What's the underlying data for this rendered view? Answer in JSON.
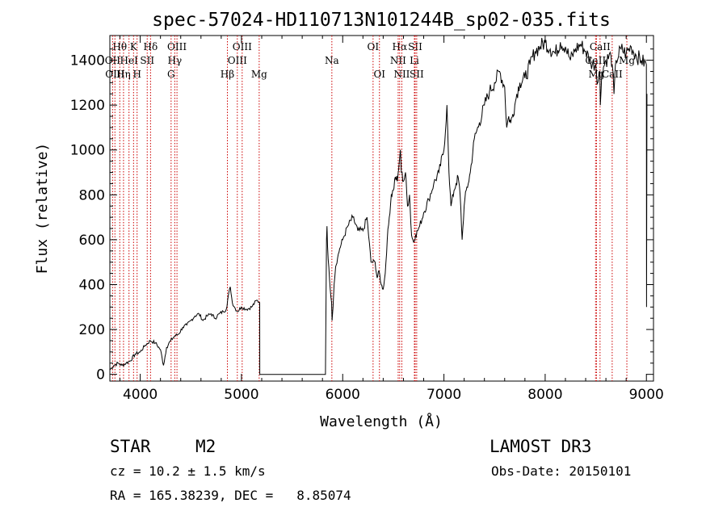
{
  "chart_data": {
    "type": "line",
    "title": "spec-57024-HD110713N101244B_sp02-035.fits",
    "xlabel": "Wavelength (Å)",
    "ylabel": "Flux (relative)",
    "xlim": [
      3700,
      9070
    ],
    "ylim": [
      -30,
      1510
    ],
    "xticks": [
      4000,
      5000,
      6000,
      7000,
      8000,
      9000
    ],
    "yticks": [
      0,
      200,
      400,
      600,
      800,
      1000,
      1200,
      1400
    ],
    "xtick_labels": [
      "4000",
      "5000",
      "6000",
      "7000",
      "8000",
      "9000"
    ],
    "ytick_labels": [
      "0",
      "200",
      "400",
      "600",
      "800",
      "1000",
      "1200",
      "1400"
    ],
    "series": [
      {
        "name": "flux",
        "x": [
          3700,
          3740,
          3780,
          3820,
          3860,
          3900,
          3950,
          4000,
          4050,
          4100,
          4150,
          4200,
          4230,
          4260,
          4300,
          4340,
          4380,
          4420,
          4460,
          4500,
          4540,
          4580,
          4620,
          4660,
          4700,
          4740,
          4780,
          4820,
          4850,
          4870,
          4890,
          4910,
          4930,
          4960,
          5000,
          5050,
          5100,
          5150,
          5180,
          5181,
          5200,
          5830,
          5840,
          5845,
          5850,
          5870,
          5890,
          5895,
          5905,
          5915,
          5930,
          5950,
          5970,
          6000,
          6050,
          6100,
          6150,
          6200,
          6240,
          6280,
          6320,
          6340,
          6360,
          6380,
          6400,
          6420,
          6440,
          6460,
          6480,
          6500,
          6520,
          6540,
          6560,
          6570,
          6580,
          6600,
          6620,
          6640,
          6660,
          6680,
          6700,
          6720,
          6740,
          6760,
          6800,
          6850,
          6900,
          6950,
          7000,
          7030,
          7050,
          7055,
          7070,
          7100,
          7120,
          7140,
          7160,
          7180,
          7200,
          7220,
          7240,
          7260,
          7300,
          7350,
          7400,
          7450,
          7500,
          7550,
          7600,
          7620,
          7640,
          7660,
          7680,
          7700,
          7720,
          7750,
          7800,
          7850,
          7900,
          7950,
          8000,
          8050,
          8100,
          8150,
          8200,
          8250,
          8300,
          8350,
          8400,
          8450,
          8500,
          8520,
          8540,
          8545,
          8560,
          8600,
          8650,
          8662,
          8680,
          8700,
          8750,
          8800,
          8850,
          8900,
          8950,
          9000,
          9001,
          9005
        ],
        "y": [
          20,
          40,
          50,
          40,
          50,
          60,
          90,
          100,
          130,
          150,
          140,
          110,
          40,
          120,
          150,
          170,
          180,
          210,
          220,
          240,
          260,
          270,
          240,
          260,
          270,
          250,
          270,
          280,
          290,
          350,
          390,
          320,
          300,
          280,
          300,
          290,
          300,
          330,
          320,
          0,
          0,
          0,
          600,
          660,
          570,
          420,
          320,
          240,
          300,
          400,
          480,
          520,
          560,
          600,
          660,
          700,
          640,
          640,
          700,
          500,
          500,
          430,
          460,
          400,
          380,
          450,
          600,
          700,
          800,
          820,
          880,
          860,
          950,
          1000,
          900,
          860,
          900,
          750,
          800,
          620,
          590,
          620,
          640,
          660,
          720,
          780,
          850,
          900,
          1000,
          1200,
          900,
          850,
          750,
          820,
          850,
          880,
          800,
          600,
          750,
          820,
          850,
          900,
          1050,
          1120,
          1200,
          1260,
          1300,
          1350,
          1280,
          1100,
          1150,
          1120,
          1160,
          1200,
          1250,
          1300,
          1320,
          1380,
          1440,
          1460,
          1480,
          1450,
          1430,
          1480,
          1460,
          1400,
          1450,
          1470,
          1440,
          1390,
          1380,
          1300,
          1350,
          1200,
          1350,
          1400,
          1420,
          1380,
          1250,
          1400,
          1450,
          1430,
          1460,
          1420,
          1400,
          1380,
          300,
          1250
        ]
      }
    ],
    "line_marks": [
      {
        "label": "Hθ",
        "x": 3798,
        "row": 0
      },
      {
        "label": "OII",
        "x": 3727,
        "row": 1
      },
      {
        "label": "OIII",
        "x": 3750,
        "row": 2
      },
      {
        "label": "K",
        "x": 3934,
        "row": 0
      },
      {
        "label": "HeI",
        "x": 3889,
        "row": 1
      },
      {
        "label": "Hη",
        "x": 3835,
        "row": 2
      },
      {
        "label": "SII",
        "x": 4069,
        "row": 1
      },
      {
        "label": "Hδ",
        "x": 4102,
        "row": 0
      },
      {
        "label": "H",
        "x": 3969,
        "row": 2
      },
      {
        "label": "OIII",
        "x": 4363,
        "row": 0
      },
      {
        "label": "Hγ",
        "x": 4341,
        "row": 1
      },
      {
        "label": "G",
        "x": 4305,
        "row": 2
      },
      {
        "label": "OIII",
        "x": 5007,
        "row": 0
      },
      {
        "label": "OIII",
        "x": 4959,
        "row": 1
      },
      {
        "label": "Hβ",
        "x": 4861,
        "row": 2
      },
      {
        "label": "Mg",
        "x": 5175,
        "row": 2
      },
      {
        "label": "Na",
        "x": 5893,
        "row": 1
      },
      {
        "label": "OI",
        "x": 6300,
        "row": 0
      },
      {
        "label": "OI",
        "x": 6363,
        "row": 2
      },
      {
        "label": "Hα",
        "x": 6563,
        "row": 0
      },
      {
        "label": "SII",
        "x": 6716,
        "row": 0
      },
      {
        "label": "NII",
        "x": 6548,
        "row": 1
      },
      {
        "label": "Li",
        "x": 6708,
        "row": 1
      },
      {
        "label": "NII",
        "x": 6584,
        "row": 2
      },
      {
        "label": "SII",
        "x": 6731,
        "row": 2
      },
      {
        "label": "CaII",
        "x": 8542,
        "row": 0
      },
      {
        "label": "CaII",
        "x": 8498,
        "row": 1
      },
      {
        "label": "Mg",
        "x": 8807,
        "row": 1
      },
      {
        "label": "Mg",
        "x": 8507,
        "row": 2
      },
      {
        "label": "CaII",
        "x": 8662,
        "row": 2
      }
    ]
  },
  "info": {
    "object_class": "STAR",
    "subclass": "M2",
    "survey": "LAMOST DR3",
    "redshift": "cz = 10.2 ± 1.5 km/s",
    "obs_date": "Obs-Date: 20150101",
    "coords": "RA = 165.38239, DEC =   8.85074"
  },
  "colors": {
    "line_mark": "#cc0000",
    "spectrum": "#000000"
  }
}
